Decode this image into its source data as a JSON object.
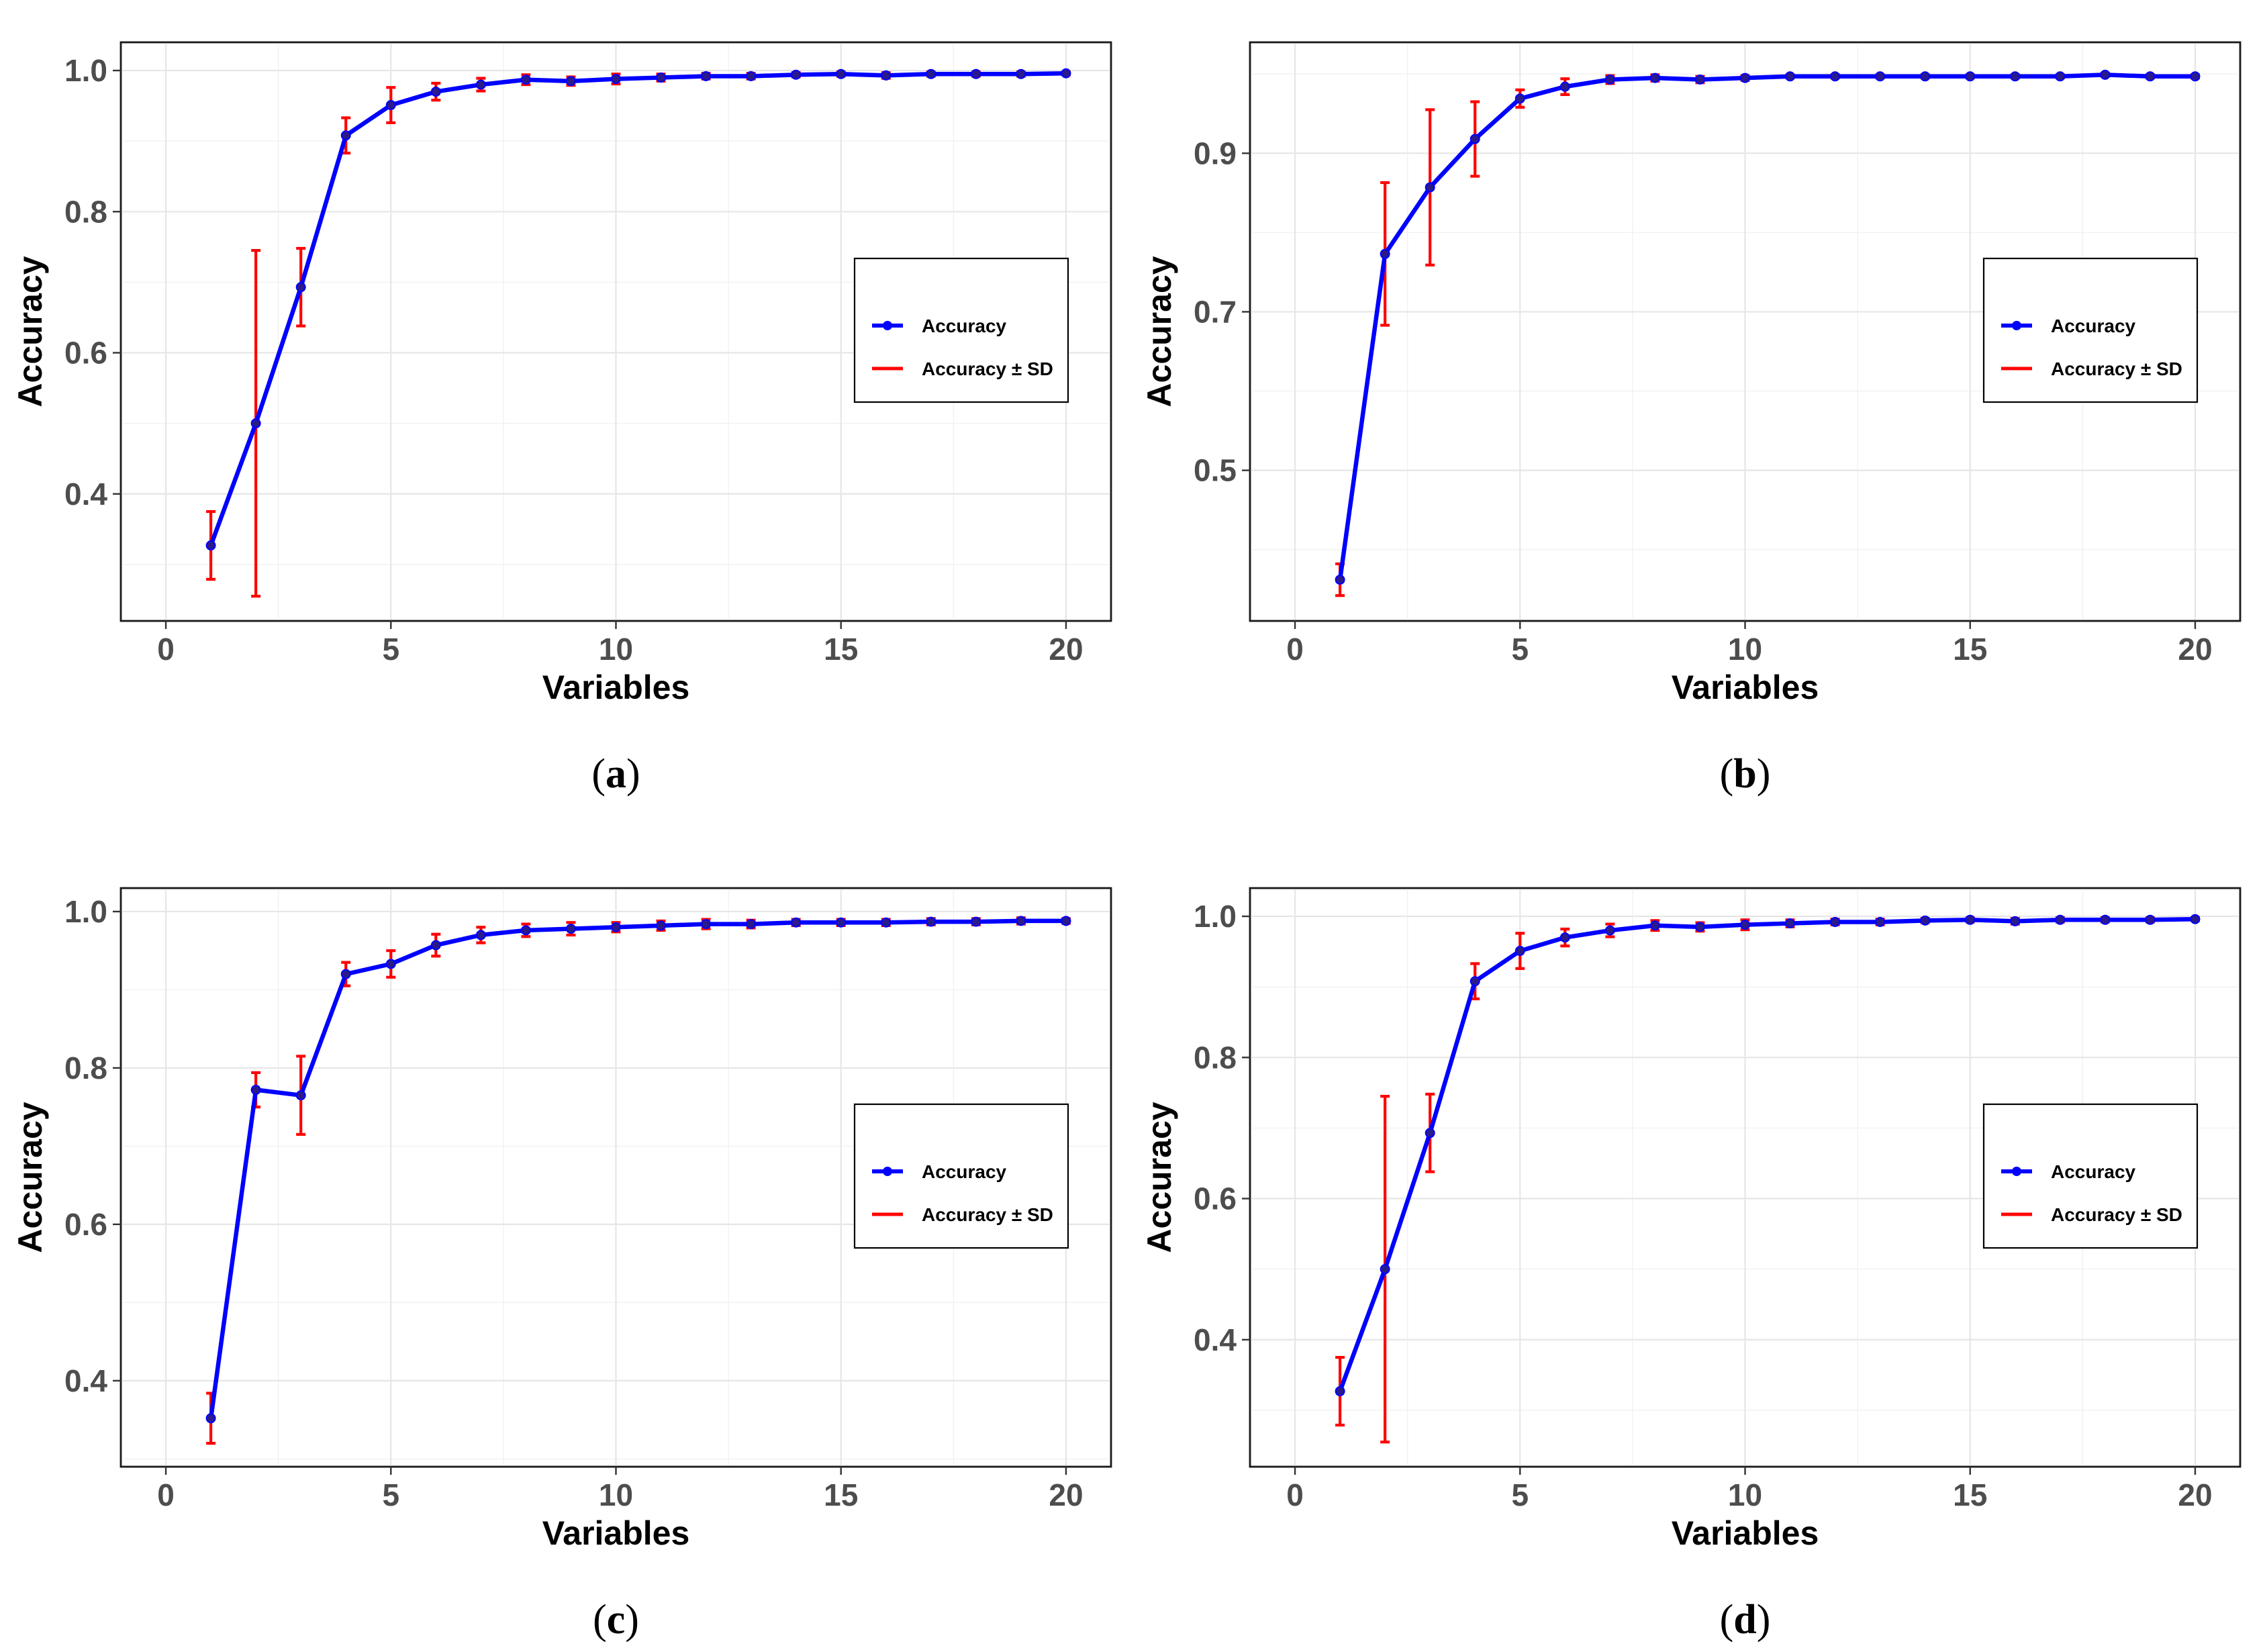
{
  "figure": {
    "panels": [
      {
        "letter": "a"
      },
      {
        "letter": "b"
      },
      {
        "letter": "c"
      },
      {
        "letter": "d"
      }
    ]
  },
  "colors": {
    "accuracy_line": "#0000ff",
    "sd_bars": "#ff0000"
  },
  "chart_data": [
    {
      "type": "line",
      "panel": "a",
      "xlabel": "Variables",
      "ylabel": "Accuracy",
      "xlim": [
        -1,
        21
      ],
      "ylim": [
        0.22,
        1.04
      ],
      "xticks": [
        0,
        5,
        10,
        15,
        20
      ],
      "yticks": [
        0.4,
        0.6,
        0.8,
        1.0
      ],
      "ytick_labels": [
        "0.4",
        "0.6",
        "0.8",
        "1.0"
      ],
      "grid": true,
      "legend": {
        "position": "right",
        "entries": [
          "Accuracy",
          "Accuracy ± SD"
        ]
      },
      "x": [
        1,
        2,
        3,
        4,
        5,
        6,
        7,
        8,
        9,
        10,
        11,
        12,
        13,
        14,
        15,
        16,
        17,
        18,
        19,
        20
      ],
      "series": [
        {
          "name": "Accuracy",
          "values": [
            0.327,
            0.5,
            0.693,
            0.908,
            0.951,
            0.97,
            0.98,
            0.987,
            0.985,
            0.988,
            0.99,
            0.992,
            0.992,
            0.994,
            0.995,
            0.993,
            0.995,
            0.995,
            0.995,
            0.996
          ],
          "sd": [
            0.048,
            0.245,
            0.055,
            0.025,
            0.025,
            0.012,
            0.009,
            0.007,
            0.006,
            0.007,
            0.005,
            0.004,
            0.004,
            0.003,
            0.003,
            0.004,
            0.003,
            0.003,
            0.003,
            0.002
          ]
        }
      ]
    },
    {
      "type": "line",
      "panel": "b",
      "xlabel": "Variables",
      "ylabel": "Accuracy",
      "xlim": [
        -1,
        21
      ],
      "ylim": [
        0.31,
        1.04
      ],
      "xticks": [
        0,
        5,
        10,
        15,
        20
      ],
      "yticks": [
        0.5,
        0.7,
        0.9
      ],
      "ytick_labels": [
        "0.5",
        "0.7",
        "0.9"
      ],
      "grid": true,
      "legend": {
        "position": "right",
        "entries": [
          "Accuracy",
          "Accuracy ± SD"
        ]
      },
      "x": [
        1,
        2,
        3,
        4,
        5,
        6,
        7,
        8,
        9,
        10,
        11,
        12,
        13,
        14,
        15,
        16,
        17,
        18,
        19,
        20
      ],
      "series": [
        {
          "name": "Accuracy",
          "values": [
            0.362,
            0.773,
            0.857,
            0.918,
            0.969,
            0.984,
            0.993,
            0.995,
            0.993,
            0.995,
            0.997,
            0.997,
            0.997,
            0.997,
            0.997,
            0.997,
            0.997,
            0.999,
            0.997,
            0.997
          ],
          "sd": [
            0.02,
            0.09,
            0.098,
            0.047,
            0.011,
            0.01,
            0.005,
            0.004,
            0.004,
            0.003,
            0.002,
            0.002,
            0.002,
            0.002,
            0.002,
            0.002,
            0.002,
            0.002,
            0.002,
            0.002
          ]
        }
      ]
    },
    {
      "type": "line",
      "panel": "c",
      "xlabel": "Variables",
      "ylabel": "Accuracy",
      "xlim": [
        -1,
        21
      ],
      "ylim": [
        0.29,
        1.03
      ],
      "xticks": [
        0,
        5,
        10,
        15,
        20
      ],
      "yticks": [
        0.4,
        0.6,
        0.8,
        1.0
      ],
      "ytick_labels": [
        "0.4",
        "0.6",
        "0.8",
        "1.0"
      ],
      "grid": true,
      "legend": {
        "position": "right",
        "entries": [
          "Accuracy",
          "Accuracy ± SD"
        ]
      },
      "x": [
        1,
        2,
        3,
        4,
        5,
        6,
        7,
        8,
        9,
        10,
        11,
        12,
        13,
        14,
        15,
        16,
        17,
        18,
        19,
        20
      ],
      "series": [
        {
          "name": "Accuracy",
          "values": [
            0.352,
            0.772,
            0.765,
            0.92,
            0.933,
            0.957,
            0.97,
            0.976,
            0.978,
            0.98,
            0.982,
            0.984,
            0.984,
            0.986,
            0.986,
            0.986,
            0.987,
            0.987,
            0.988,
            0.988
          ],
          "sd": [
            0.032,
            0.022,
            0.05,
            0.015,
            0.017,
            0.014,
            0.01,
            0.008,
            0.008,
            0.006,
            0.006,
            0.006,
            0.005,
            0.004,
            0.004,
            0.004,
            0.004,
            0.004,
            0.004,
            0.003
          ]
        }
      ]
    },
    {
      "type": "line",
      "panel": "d",
      "xlabel": "Variables",
      "ylabel": "Accuracy",
      "xlim": [
        -1,
        21
      ],
      "ylim": [
        0.22,
        1.04
      ],
      "xticks": [
        0,
        5,
        10,
        15,
        20
      ],
      "yticks": [
        0.4,
        0.6,
        0.8,
        1.0
      ],
      "ytick_labels": [
        "0.4",
        "0.6",
        "0.8",
        "1.0"
      ],
      "grid": true,
      "legend": {
        "position": "right",
        "entries": [
          "Accuracy",
          "Accuracy ± SD"
        ]
      },
      "x": [
        1,
        2,
        3,
        4,
        5,
        6,
        7,
        8,
        9,
        10,
        11,
        12,
        13,
        14,
        15,
        16,
        17,
        18,
        19,
        20
      ],
      "series": [
        {
          "name": "Accuracy",
          "values": [
            0.327,
            0.5,
            0.693,
            0.908,
            0.951,
            0.97,
            0.98,
            0.987,
            0.985,
            0.988,
            0.99,
            0.992,
            0.992,
            0.994,
            0.995,
            0.993,
            0.995,
            0.995,
            0.995,
            0.996
          ],
          "sd": [
            0.048,
            0.245,
            0.055,
            0.025,
            0.025,
            0.012,
            0.009,
            0.007,
            0.006,
            0.007,
            0.005,
            0.004,
            0.004,
            0.003,
            0.003,
            0.004,
            0.003,
            0.003,
            0.003,
            0.002
          ]
        }
      ]
    }
  ]
}
